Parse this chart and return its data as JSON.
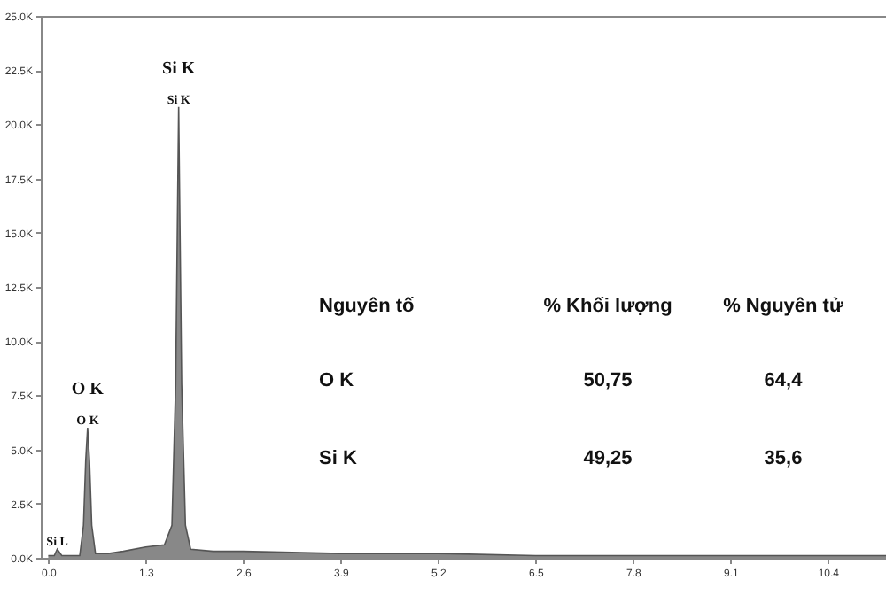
{
  "chart_data": {
    "type": "area",
    "color": "#555555",
    "x": [
      0.0,
      0.08,
      0.12,
      0.18,
      0.3,
      0.42,
      0.47,
      0.5,
      0.525,
      0.55,
      0.58,
      0.63,
      0.8,
      1.0,
      1.3,
      1.55,
      1.65,
      1.7,
      1.74,
      1.78,
      1.83,
      1.9,
      2.2,
      2.6,
      3.9,
      5.2,
      6.5,
      7.8,
      9.1,
      10.4,
      11.2
    ],
    "values": [
      0.1,
      0.1,
      0.4,
      0.1,
      0.1,
      0.1,
      1.5,
      4.5,
      6.0,
      4.5,
      1.5,
      0.2,
      0.2,
      0.3,
      0.5,
      0.6,
      1.5,
      8,
      20.8,
      8,
      1.5,
      0.4,
      0.3,
      0.3,
      0.2,
      0.2,
      0.1,
      0.1,
      0.1,
      0.1,
      0.1
    ],
    "xlim": [
      -0.1,
      11.2
    ],
    "xticks": [
      {
        "value": 0,
        "label": "0.0"
      },
      1.3,
      2.6,
      3.9,
      5.2,
      6.5,
      7.8,
      9.1,
      10.4
    ],
    "ylim": [
      0,
      25
    ],
    "yticks": [
      {
        "value": 0,
        "label": "0.0K"
      },
      {
        "value": 2.5,
        "label": "2.5K"
      },
      {
        "value": 5,
        "label": "5.0K"
      },
      {
        "value": 7.5,
        "label": "7.5K"
      },
      {
        "value": 10,
        "label": "10.0K"
      },
      {
        "value": 12.5,
        "label": "12.5K"
      },
      {
        "value": 15,
        "label": "15.0K"
      },
      {
        "value": 17.5,
        "label": "17.5K"
      },
      {
        "value": 20,
        "label": "20.0K"
      },
      {
        "value": 22.5,
        "label": "22.5K"
      },
      {
        "value": 25,
        "label": "25.0K"
      }
    ],
    "grid": false,
    "annotations": [
      {
        "text": "Si K",
        "x": 1.74,
        "y": 20.8
      },
      {
        "text": "Si K",
        "x": 1.74,
        "y": 20.8
      },
      {
        "text": "O K",
        "x": 0.525,
        "y": 6.0
      },
      {
        "text": "O K",
        "x": 0.525,
        "y": 6.0
      },
      {
        "text": "Si L",
        "x": 0.12,
        "y": 0.4
      },
      "Nguyên tố",
      "% Khối lượng",
      "% Nguyên tử",
      "O  K",
      "50,75",
      "64,4",
      "Si K",
      "49,25",
      "35,6"
    ]
  }
}
